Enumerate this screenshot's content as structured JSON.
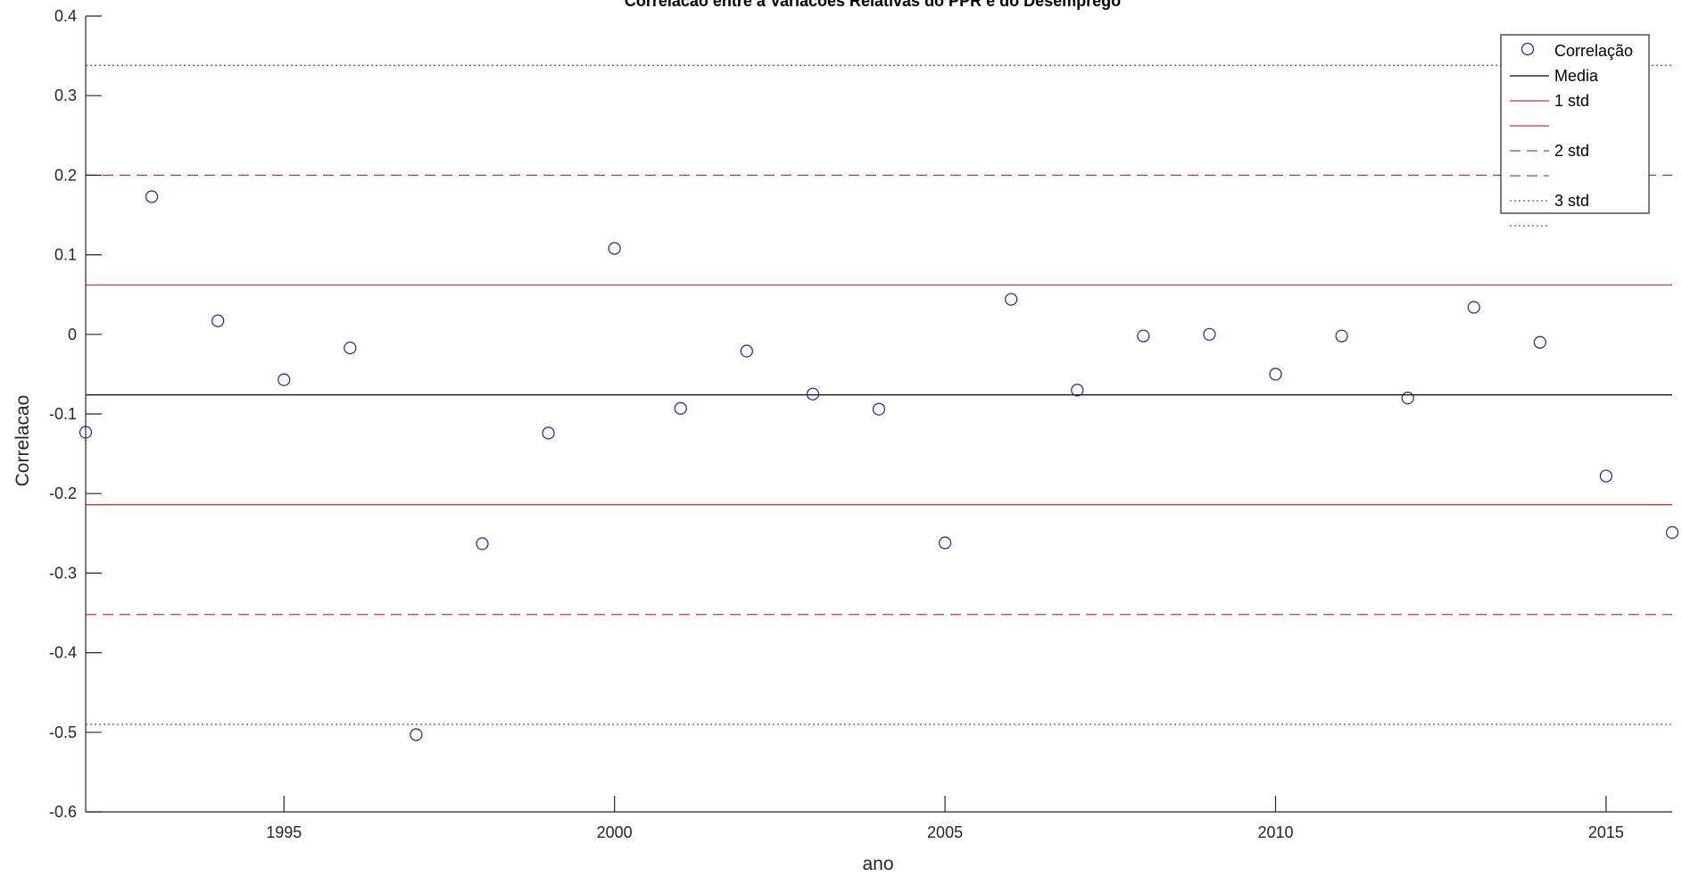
{
  "chart_data": {
    "type": "scatter",
    "title": "Correlacao entre a Variacoes Relativas do PPR e do Desemprego",
    "xlabel": "ano",
    "ylabel": "Correlacao",
    "xlim": [
      1992,
      2016
    ],
    "ylim": [
      -0.6,
      0.4
    ],
    "xticks": [
      1995,
      2000,
      2005,
      2010,
      2015
    ],
    "yticks": [
      0.4,
      0.3,
      0.2,
      0.1,
      0,
      -0.1,
      -0.2,
      -0.3,
      -0.4,
      -0.5,
      -0.6
    ],
    "grid": false,
    "legend_position": "top-right",
    "series": [
      {
        "name": "Correlação",
        "style": "marker-circle",
        "color": "#1f1fa0",
        "x": [
          1992,
          1993,
          1994,
          1995,
          1996,
          1997,
          1998,
          1999,
          2000,
          2001,
          2002,
          2003,
          2004,
          2005,
          2006,
          2007,
          2008,
          2009,
          2010,
          2011,
          2012,
          2013,
          2014,
          2015,
          2016
        ],
        "y": [
          -0.123,
          0.173,
          0.017,
          -0.057,
          -0.017,
          -0.503,
          -0.263,
          -0.124,
          0.108,
          -0.093,
          -0.021,
          -0.075,
          -0.094,
          -0.262,
          0.044,
          -0.07,
          -0.002,
          0.0,
          -0.05,
          -0.002,
          -0.08,
          0.034,
          -0.01,
          -0.178,
          -0.249
        ]
      }
    ],
    "reference_lines": [
      {
        "legend": "Media",
        "y": -0.076,
        "style": "solid",
        "color": "#000000"
      },
      {
        "legend": "1 std",
        "y": 0.062,
        "style": "solid",
        "color": "#c0393b"
      },
      {
        "legend": "",
        "y": -0.214,
        "style": "solid",
        "color": "#c0393b"
      },
      {
        "legend": "2 std",
        "y": 0.2,
        "style": "dashed",
        "color": "#c0393b"
      },
      {
        "legend": "",
        "y": -0.352,
        "style": "dashed",
        "color": "#c0393b"
      },
      {
        "legend": "3 std",
        "y": 0.338,
        "style": "dotted",
        "color": "#c0393b"
      },
      {
        "legend": "",
        "y": -0.49,
        "style": "dotted",
        "color": "#c0393b"
      }
    ]
  }
}
